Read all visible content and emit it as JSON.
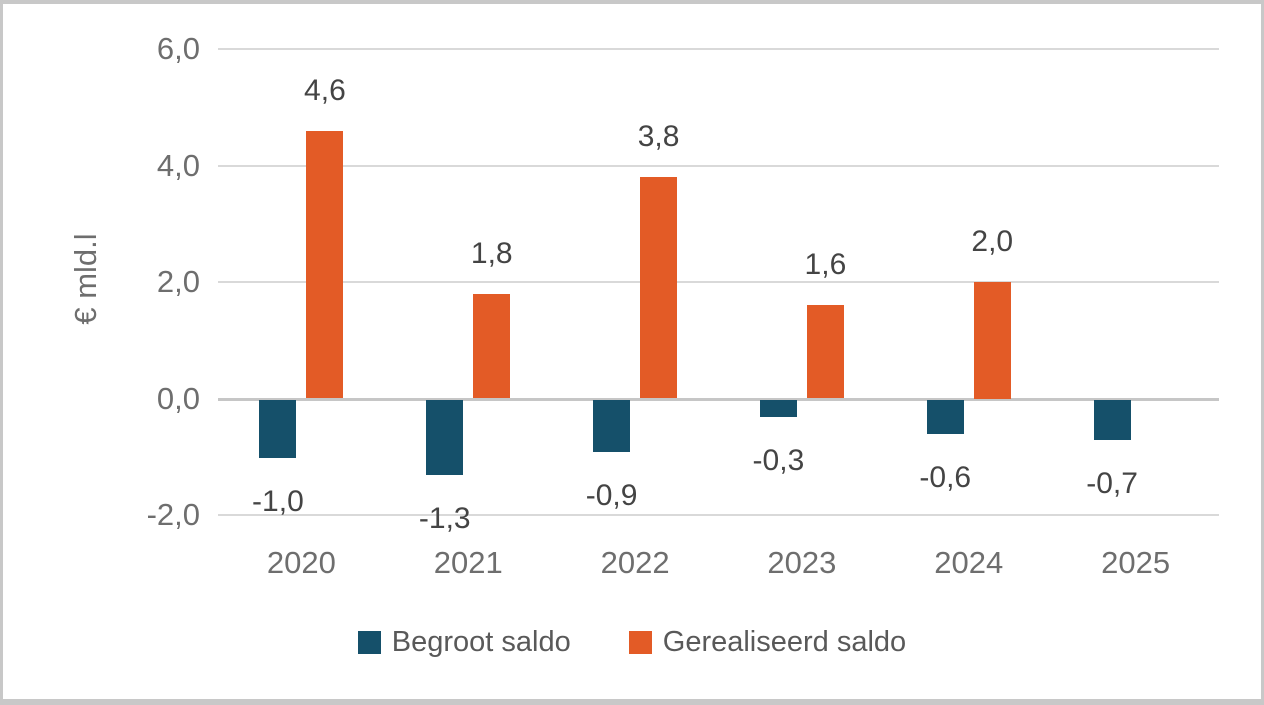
{
  "chart_data": {
    "type": "bar",
    "title": "",
    "ylabel": "€ mld.l",
    "xlabel": "",
    "categories": [
      "2020",
      "2021",
      "2022",
      "2023",
      "2024",
      "2025"
    ],
    "series": [
      {
        "name": "Begroot saldo",
        "color": "#15506a",
        "values": [
          -1.0,
          -1.3,
          -0.9,
          -0.3,
          -0.6,
          -0.7
        ],
        "labels": [
          "-1,0",
          "-1,3",
          "-0,9",
          "-0,3",
          "-0,6",
          "-0,7"
        ]
      },
      {
        "name": "Gerealiseerd saldo",
        "color": "#e35b26",
        "values": [
          4.6,
          1.8,
          3.8,
          1.6,
          2.0,
          null
        ],
        "labels": [
          "4,6",
          "1,8",
          "3,8",
          "1,6",
          "2,0",
          null
        ]
      }
    ],
    "ylim": [
      -2,
      6
    ],
    "yticks": [
      {
        "value": 6,
        "label": "6,0"
      },
      {
        "value": 4,
        "label": "4,0"
      },
      {
        "value": 2,
        "label": "2,0"
      },
      {
        "value": 0,
        "label": "0,0"
      },
      {
        "value": -2,
        "label": "-2,0"
      }
    ],
    "grid": true,
    "legend_position": "bottom",
    "colors": {
      "gridline": "#d9d9d9",
      "zero_line": "#c6c6c6",
      "frame_border": "#c8c8c8",
      "tick_text": "#6e6e6e",
      "data_label_text": "#444444",
      "legend_text": "#595959"
    }
  }
}
